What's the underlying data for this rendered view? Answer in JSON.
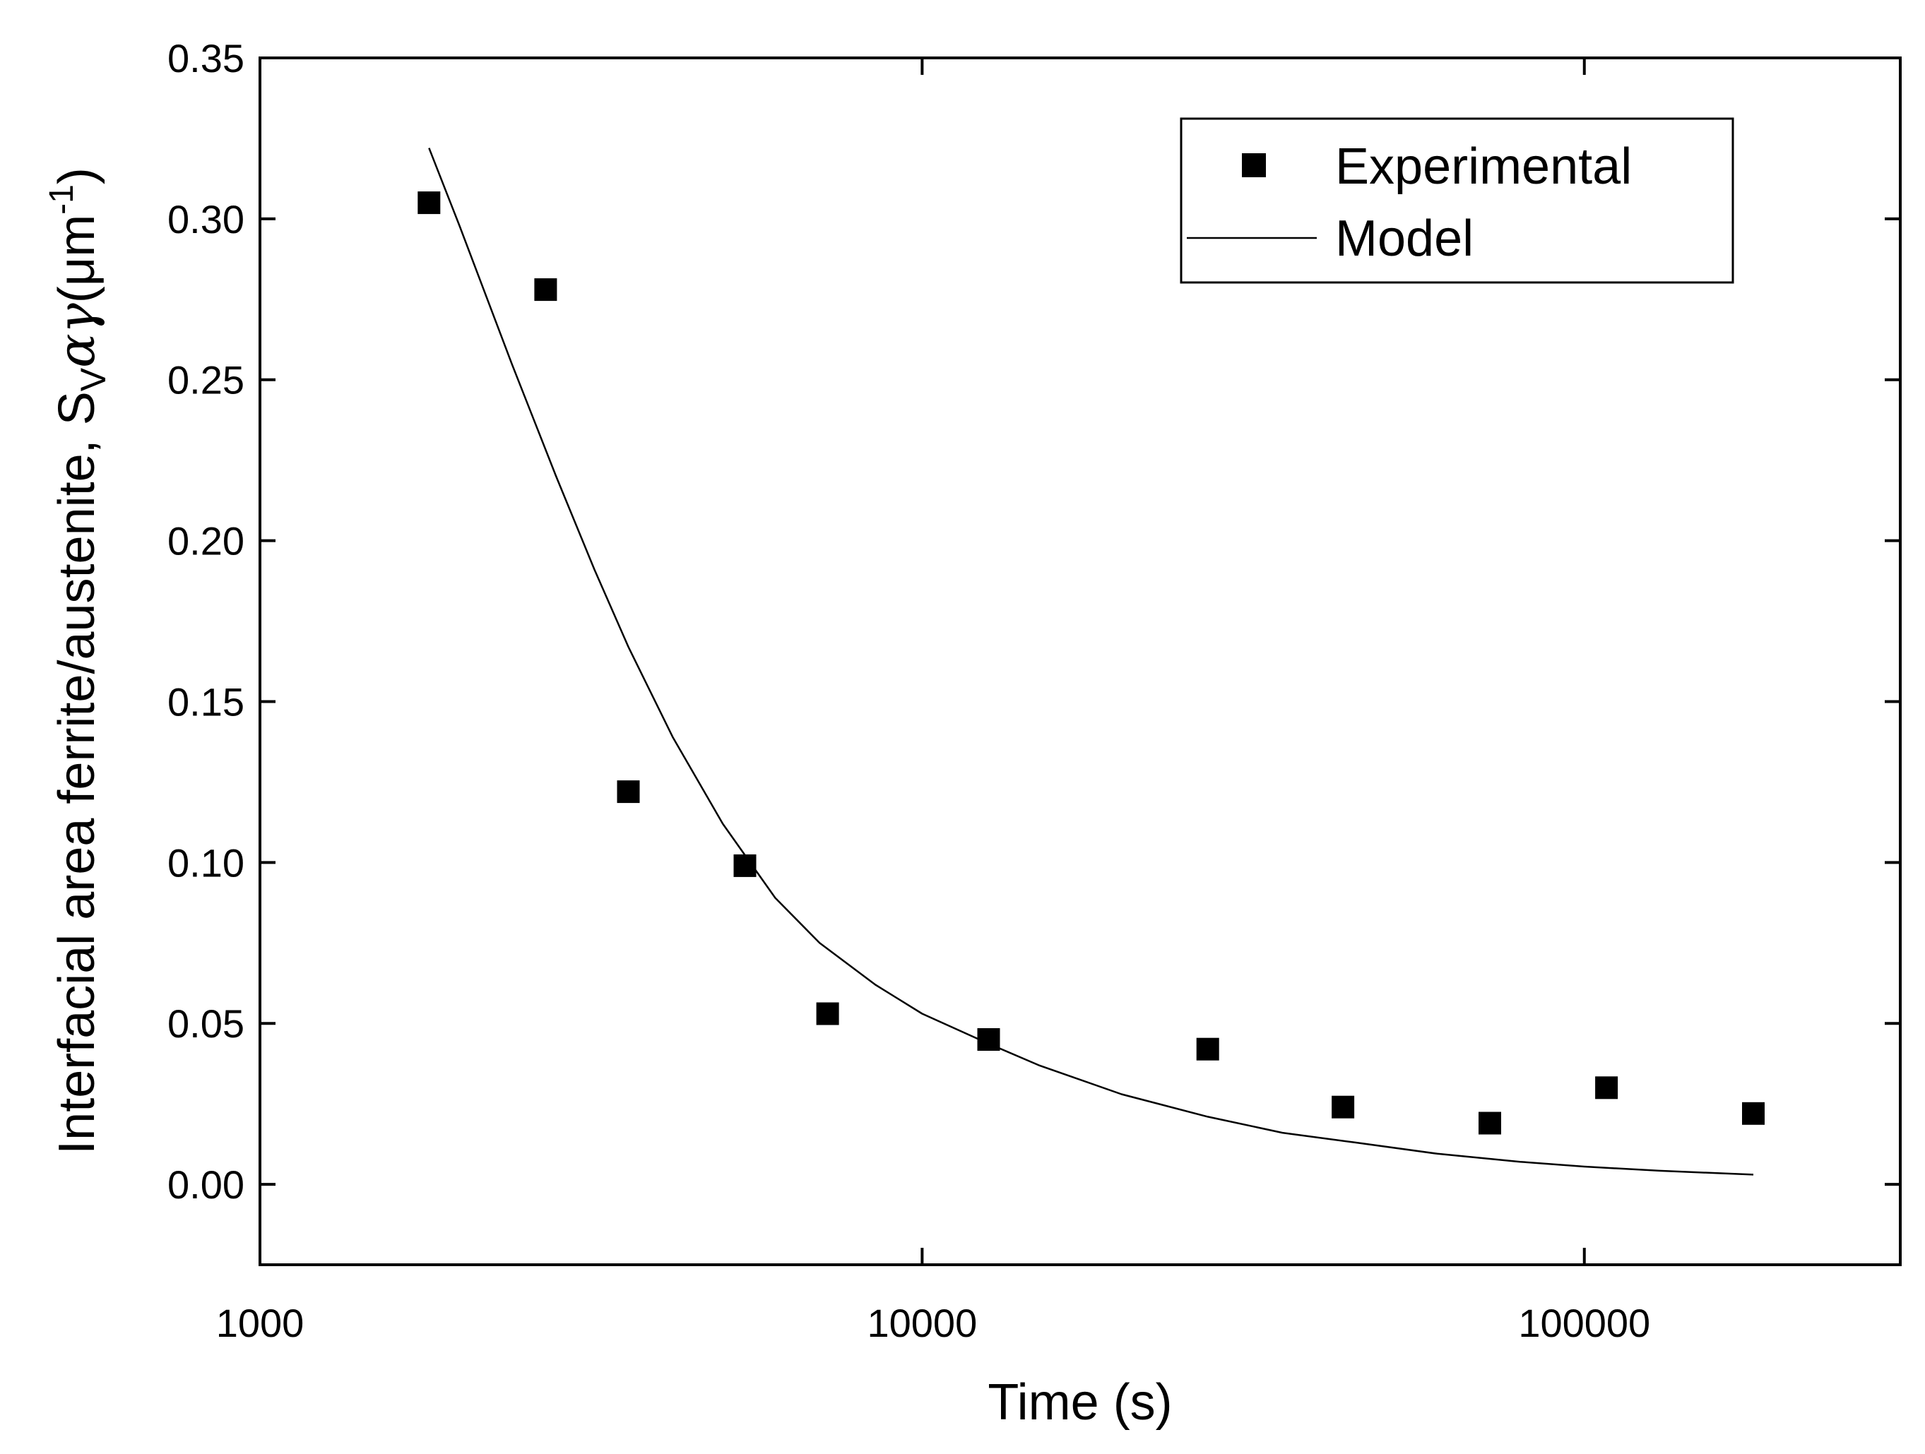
{
  "chart_data": {
    "type": "scatter",
    "title": "",
    "xlabel": "Time (s)",
    "ylabel": {
      "main": "Interfacial area ferrite/austenite, S",
      "sub": "V",
      "greek": "αγ",
      "unit_open": "(μm",
      "unit_exp": "-1",
      "unit_close": ")"
    },
    "xscale": "log",
    "xlim": [
      1000,
      300000
    ],
    "ylim": [
      -0.025,
      0.35
    ],
    "xticks": [
      1000,
      10000,
      100000
    ],
    "xtick_labels": [
      "1000",
      "10000",
      "100000"
    ],
    "yticks": [
      0.0,
      0.05,
      0.1,
      0.15,
      0.2,
      0.25,
      0.3,
      0.35
    ],
    "ytick_labels": [
      "0.00",
      "0.05",
      "0.10",
      "0.15",
      "0.20",
      "0.25",
      "0.30",
      "0.35"
    ],
    "legend": {
      "position": "top-right",
      "entries": [
        "Experimental",
        "Model"
      ]
    },
    "series": [
      {
        "name": "Experimental",
        "kind": "markers",
        "marker": "square",
        "color": "#000000",
        "x": [
          1800,
          2700,
          3600,
          5400,
          7200,
          12600,
          27000,
          43200,
          72000,
          108000,
          180000
        ],
        "y": [
          0.305,
          0.278,
          0.122,
          0.099,
          0.053,
          0.045,
          0.042,
          0.024,
          0.019,
          0.03,
          0.022
        ]
      },
      {
        "name": "Model",
        "kind": "line",
        "color": "#000000",
        "x": [
          1800,
          2000,
          2400,
          2800,
          3200,
          3600,
          4200,
          5000,
          6000,
          7000,
          8500,
          10000,
          12500,
          15000,
          20000,
          27000,
          35000,
          45000,
          60000,
          80000,
          100000,
          130000,
          180000
        ],
        "y": [
          0.322,
          0.298,
          0.255,
          0.22,
          0.191,
          0.167,
          0.139,
          0.112,
          0.089,
          0.075,
          0.062,
          0.053,
          0.044,
          0.037,
          0.028,
          0.021,
          0.016,
          0.013,
          0.0095,
          0.007,
          0.0055,
          0.0042,
          0.003
        ]
      }
    ]
  }
}
